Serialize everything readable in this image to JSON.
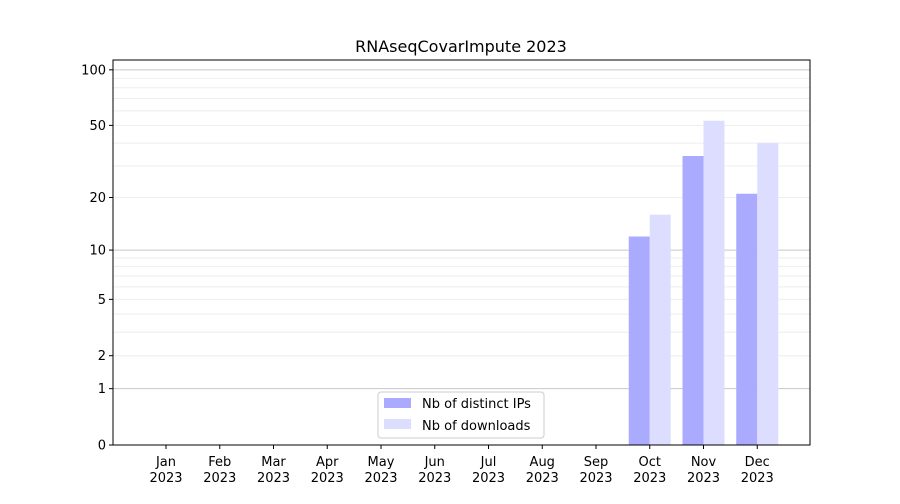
{
  "chart_data": {
    "type": "bar",
    "title": "RNAseqCovarImpute 2023",
    "xlabel": "",
    "ylabel": "",
    "yscale": "log(y+1)",
    "ylim": [
      0,
      113
    ],
    "yticks": [
      0,
      1,
      2,
      5,
      10,
      20,
      50,
      100
    ],
    "grid": true,
    "legend_position": "bottom-center",
    "categories": [
      [
        "Jan",
        "2023"
      ],
      [
        "Feb",
        "2023"
      ],
      [
        "Mar",
        "2023"
      ],
      [
        "Apr",
        "2023"
      ],
      [
        "May",
        "2023"
      ],
      [
        "Jun",
        "2023"
      ],
      [
        "Jul",
        "2023"
      ],
      [
        "Aug",
        "2023"
      ],
      [
        "Sep",
        "2023"
      ],
      [
        "Oct",
        "2023"
      ],
      [
        "Nov",
        "2023"
      ],
      [
        "Dec",
        "2023"
      ]
    ],
    "series": [
      {
        "name": "Nb of distinct IPs",
        "color": "#aaaaff",
        "values": [
          0,
          0,
          0,
          0,
          0,
          0,
          0,
          0,
          0,
          12,
          34,
          21
        ]
      },
      {
        "name": "Nb of downloads",
        "color": "#ddddff",
        "values": [
          0,
          0,
          0,
          0,
          0,
          0,
          0,
          0,
          0,
          16,
          53,
          40
        ]
      }
    ]
  }
}
